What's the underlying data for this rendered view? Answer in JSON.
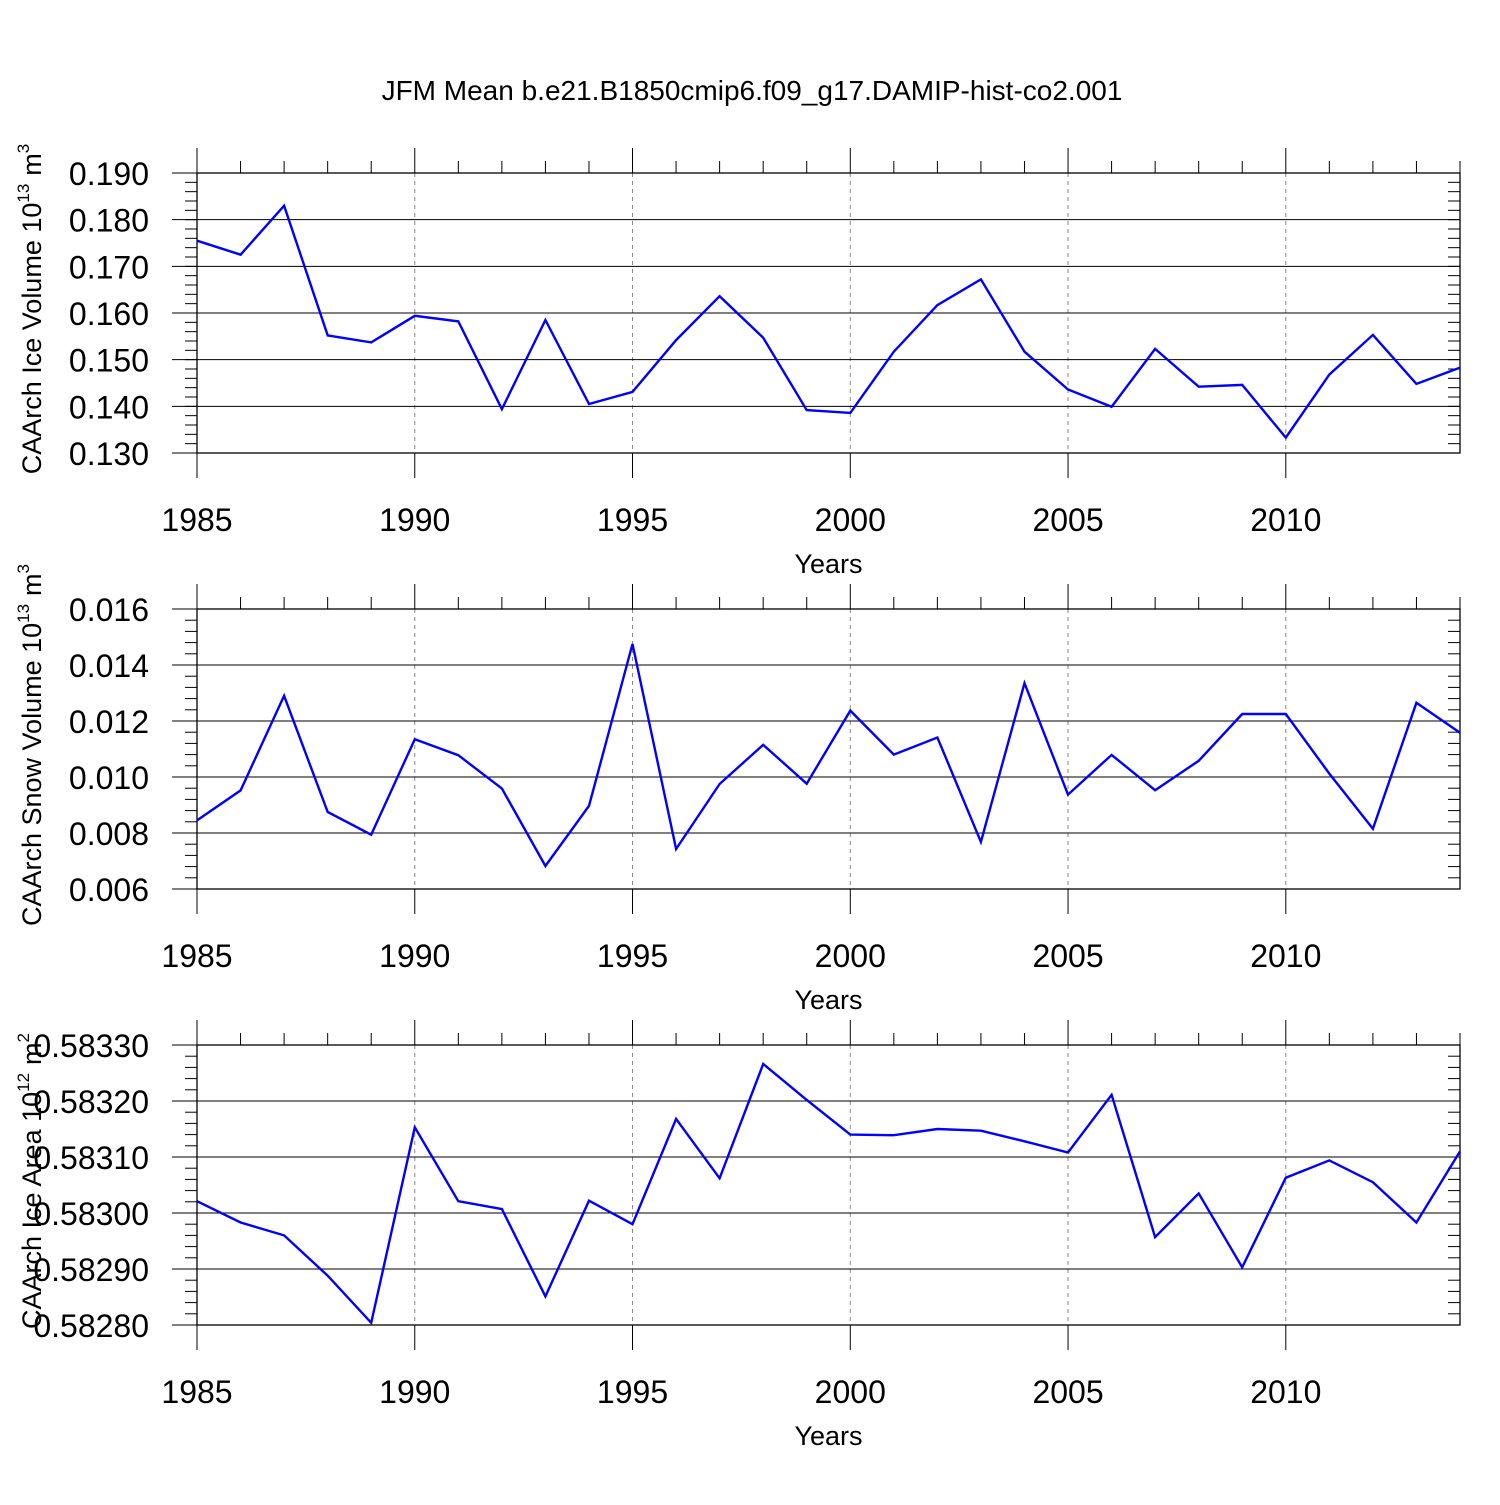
{
  "title": "JFM Mean b.e21.B1850cmip6.f09_g17.DAMIP-hist-co2.001",
  "line_color": "#0000ff",
  "chart_data": [
    {
      "type": "line",
      "ylabel_main": "CAArch Ice Volume 10",
      "ylabel_exp": "13",
      "ylabel_unit": "m",
      "ylabel_unit_exp": "3",
      "xlabel": "Years",
      "xlim": [
        1985,
        2014
      ],
      "ylim": [
        0.13,
        0.19
      ],
      "x_ticks": [
        1985,
        1990,
        1995,
        2000,
        2005,
        2010
      ],
      "x_tick_labels": [
        "1985",
        "1990",
        "1995",
        "2000",
        "2005",
        "2010"
      ],
      "y_ticks": [
        0.13,
        0.14,
        0.15,
        0.16,
        0.17,
        0.18,
        0.19
      ],
      "y_tick_labels": [
        "0.130",
        "0.140",
        "0.150",
        "0.160",
        "0.170",
        "0.180",
        "0.190"
      ],
      "y_minor_step": 0.002,
      "x": [
        1985,
        1986,
        1987,
        1988,
        1989,
        1990,
        1991,
        1992,
        1993,
        1994,
        1995,
        1996,
        1997,
        1998,
        1999,
        2000,
        2001,
        2002,
        2003,
        2004,
        2005,
        2006,
        2007,
        2008,
        2009,
        2010,
        2011,
        2012,
        2013,
        2014
      ],
      "values": [
        0.1755,
        0.1725,
        0.183,
        0.1552,
        0.1537,
        0.1594,
        0.1582,
        0.1394,
        0.1585,
        0.1405,
        0.1431,
        0.1542,
        0.1636,
        0.1547,
        0.1392,
        0.1386,
        0.1517,
        0.1617,
        0.1672,
        0.1517,
        0.1436,
        0.1399,
        0.1523,
        0.1442,
        0.1446,
        0.1333,
        0.1468,
        0.1553,
        0.1448,
        0.1483
      ]
    },
    {
      "type": "line",
      "ylabel_main": "CAArch Snow Volume 10",
      "ylabel_exp": "13",
      "ylabel_unit": "m",
      "ylabel_unit_exp": "3",
      "xlabel": "Years",
      "xlim": [
        1985,
        2014
      ],
      "ylim": [
        0.006,
        0.016
      ],
      "x_ticks": [
        1985,
        1990,
        1995,
        2000,
        2005,
        2010
      ],
      "x_tick_labels": [
        "1985",
        "1990",
        "1995",
        "2000",
        "2005",
        "2010"
      ],
      "y_ticks": [
        0.006,
        0.008,
        0.01,
        0.012,
        0.014,
        0.016
      ],
      "y_tick_labels": [
        "0.006",
        "0.008",
        "0.010",
        "0.012",
        "0.014",
        "0.016"
      ],
      "y_minor_step": 0.0004,
      "x": [
        1985,
        1986,
        1987,
        1988,
        1989,
        1990,
        1991,
        1992,
        1993,
        1994,
        1995,
        1996,
        1997,
        1998,
        1999,
        2000,
        2001,
        2002,
        2003,
        2004,
        2005,
        2006,
        2007,
        2008,
        2009,
        2010,
        2011,
        2012,
        2013,
        2014
      ],
      "values": [
        0.00845,
        0.00952,
        0.0129,
        0.00875,
        0.00794,
        0.01135,
        0.01078,
        0.00959,
        0.00682,
        0.00897,
        0.01475,
        0.00743,
        0.00975,
        0.01115,
        0.00976,
        0.01237,
        0.0108,
        0.01141,
        0.00768,
        0.01335,
        0.00937,
        0.01079,
        0.00953,
        0.01058,
        0.01225,
        0.01225,
        0.01012,
        0.00815,
        0.01265,
        0.01158
      ]
    },
    {
      "type": "line",
      "ylabel_main": "CAArch Ice Area 10",
      "ylabel_exp": "12",
      "ylabel_unit": "m",
      "ylabel_unit_exp": "2",
      "xlabel": "Years",
      "xlim": [
        1985,
        2014
      ],
      "ylim": [
        0.5828,
        0.5833
      ],
      "x_ticks": [
        1985,
        1990,
        1995,
        2000,
        2005,
        2010
      ],
      "x_tick_labels": [
        "1985",
        "1990",
        "1995",
        "2000",
        "2005",
        "2010"
      ],
      "y_ticks": [
        0.5828,
        0.5829,
        0.583,
        0.5831,
        0.5832,
        0.5833
      ],
      "y_tick_labels": [
        "0.58280",
        "0.58290",
        "0.58300",
        "0.58310",
        "0.58320",
        "0.58330"
      ],
      "y_minor_step": 2e-05,
      "x": [
        1985,
        1986,
        1987,
        1988,
        1989,
        1990,
        1991,
        1992,
        1993,
        1994,
        1995,
        1996,
        1997,
        1998,
        1999,
        2000,
        2001,
        2002,
        2003,
        2004,
        2005,
        2006,
        2007,
        2008,
        2009,
        2010,
        2011,
        2012,
        2013,
        2014
      ],
      "values": [
        0.583021,
        0.582983,
        0.58296,
        0.582888,
        0.582804,
        0.583153,
        0.583021,
        0.583007,
        0.582851,
        0.583022,
        0.58298,
        0.583168,
        0.583062,
        0.583266,
        0.583202,
        0.58314,
        0.583139,
        0.58315,
        0.583147,
        0.583128,
        0.583108,
        0.583211,
        0.582957,
        0.583035,
        0.582903,
        0.583063,
        0.583094,
        0.583055,
        0.582983,
        0.58311
      ]
    }
  ]
}
